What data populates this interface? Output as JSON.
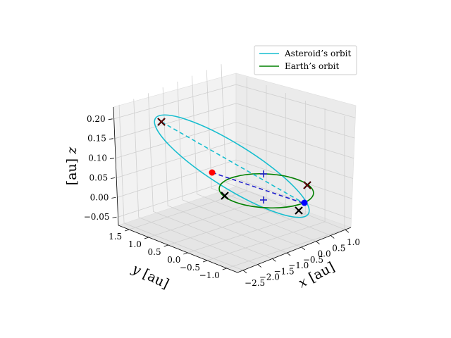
{
  "chart_data": {
    "type": "line3d",
    "axes": {
      "x": {
        "label_var": "x",
        "label_unit": "[au]",
        "ticks": [
          "−2.5",
          "−2.0",
          "−1.5",
          "−1.0",
          "−0.5",
          "0.0",
          "0.5",
          "1.0"
        ]
      },
      "y": {
        "label_var": "y",
        "label_unit": "[au]",
        "ticks": [
          "−1.0",
          "−0.5",
          "0.0",
          "0.5",
          "1.0",
          "1.5"
        ]
      },
      "z": {
        "label_var": "z",
        "label_unit": "[au]",
        "ticks": [
          "−0.05",
          "0.00",
          "0.05",
          "0.10",
          "0.15",
          "0.20"
        ]
      }
    },
    "grid": true,
    "legend_placement": "upper-right",
    "series": [
      {
        "name": "Asteroid’s orbit",
        "color": "#17becf",
        "style": "solid"
      },
      {
        "name": "Earth’s orbit",
        "color": "#008000",
        "style": "solid"
      }
    ],
    "nodes_line_color": "#1f1fcc",
    "apsides_line_color": "#17becf",
    "markers": {
      "perihelion_color": "#0000ff",
      "aphelion_color": "#ff0000",
      "cross_color": "#000000",
      "cross_red_color": "#8b0000"
    }
  }
}
